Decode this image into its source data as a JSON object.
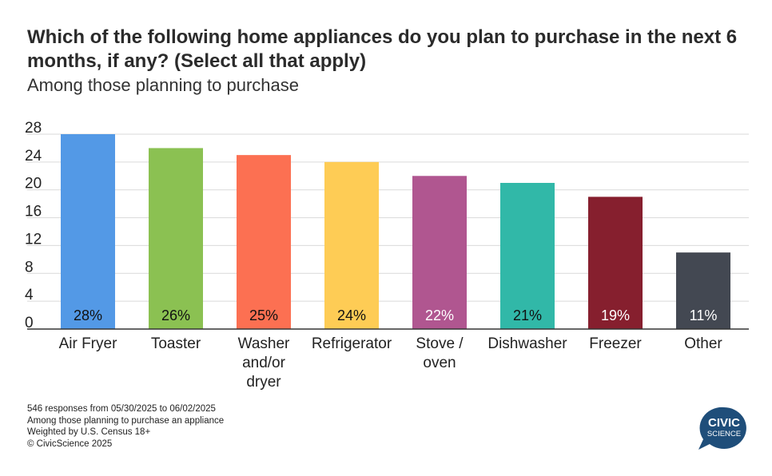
{
  "header": {
    "title": "Which of the following home appliances do you plan to purchase in the next 6 months, if any? (Select all that apply)",
    "subtitle": "Among those planning to purchase"
  },
  "chart_data": {
    "type": "bar",
    "categories": [
      "Air Fryer",
      "Toaster",
      "Washer and/or dryer",
      "Refrigerator",
      "Stove / oven",
      "Dishwasher",
      "Freezer",
      "Other"
    ],
    "category_lines": [
      [
        "Air Fryer"
      ],
      [
        "Toaster"
      ],
      [
        "Washer",
        "and/or",
        "dryer"
      ],
      [
        "Refrigerator"
      ],
      [
        "Stove /",
        "oven"
      ],
      [
        "Dishwasher"
      ],
      [
        "Freezer"
      ],
      [
        "Other"
      ]
    ],
    "values": [
      28,
      26,
      25,
      24,
      22,
      21,
      19,
      11
    ],
    "data_labels": [
      "28%",
      "26%",
      "25%",
      "24%",
      "22%",
      "21%",
      "19%",
      "11%"
    ],
    "colors": [
      "#5399e6",
      "#8bc152",
      "#fc7052",
      "#fecc55",
      "#b05690",
      "#31b8a8",
      "#861f2e",
      "#434852"
    ],
    "label_colors": [
      "#111111",
      "#111111",
      "#111111",
      "#111111",
      "#ffffff",
      "#111111",
      "#ffffff",
      "#ffffff"
    ],
    "yticks": [
      0,
      4,
      8,
      12,
      16,
      20,
      24,
      28
    ],
    "ylim": [
      0,
      28
    ],
    "grid": true
  },
  "footer": {
    "lines": [
      "546 responses from 05/30/2025 to 06/02/2025",
      "Among those planning to purchase an appliance",
      "Weighted by U.S. Census 18+",
      "© CivicScience 2025"
    ]
  },
  "logo": {
    "line1": "CIVIC",
    "line2": "SCIENCE",
    "color": "#1f4e7a"
  }
}
